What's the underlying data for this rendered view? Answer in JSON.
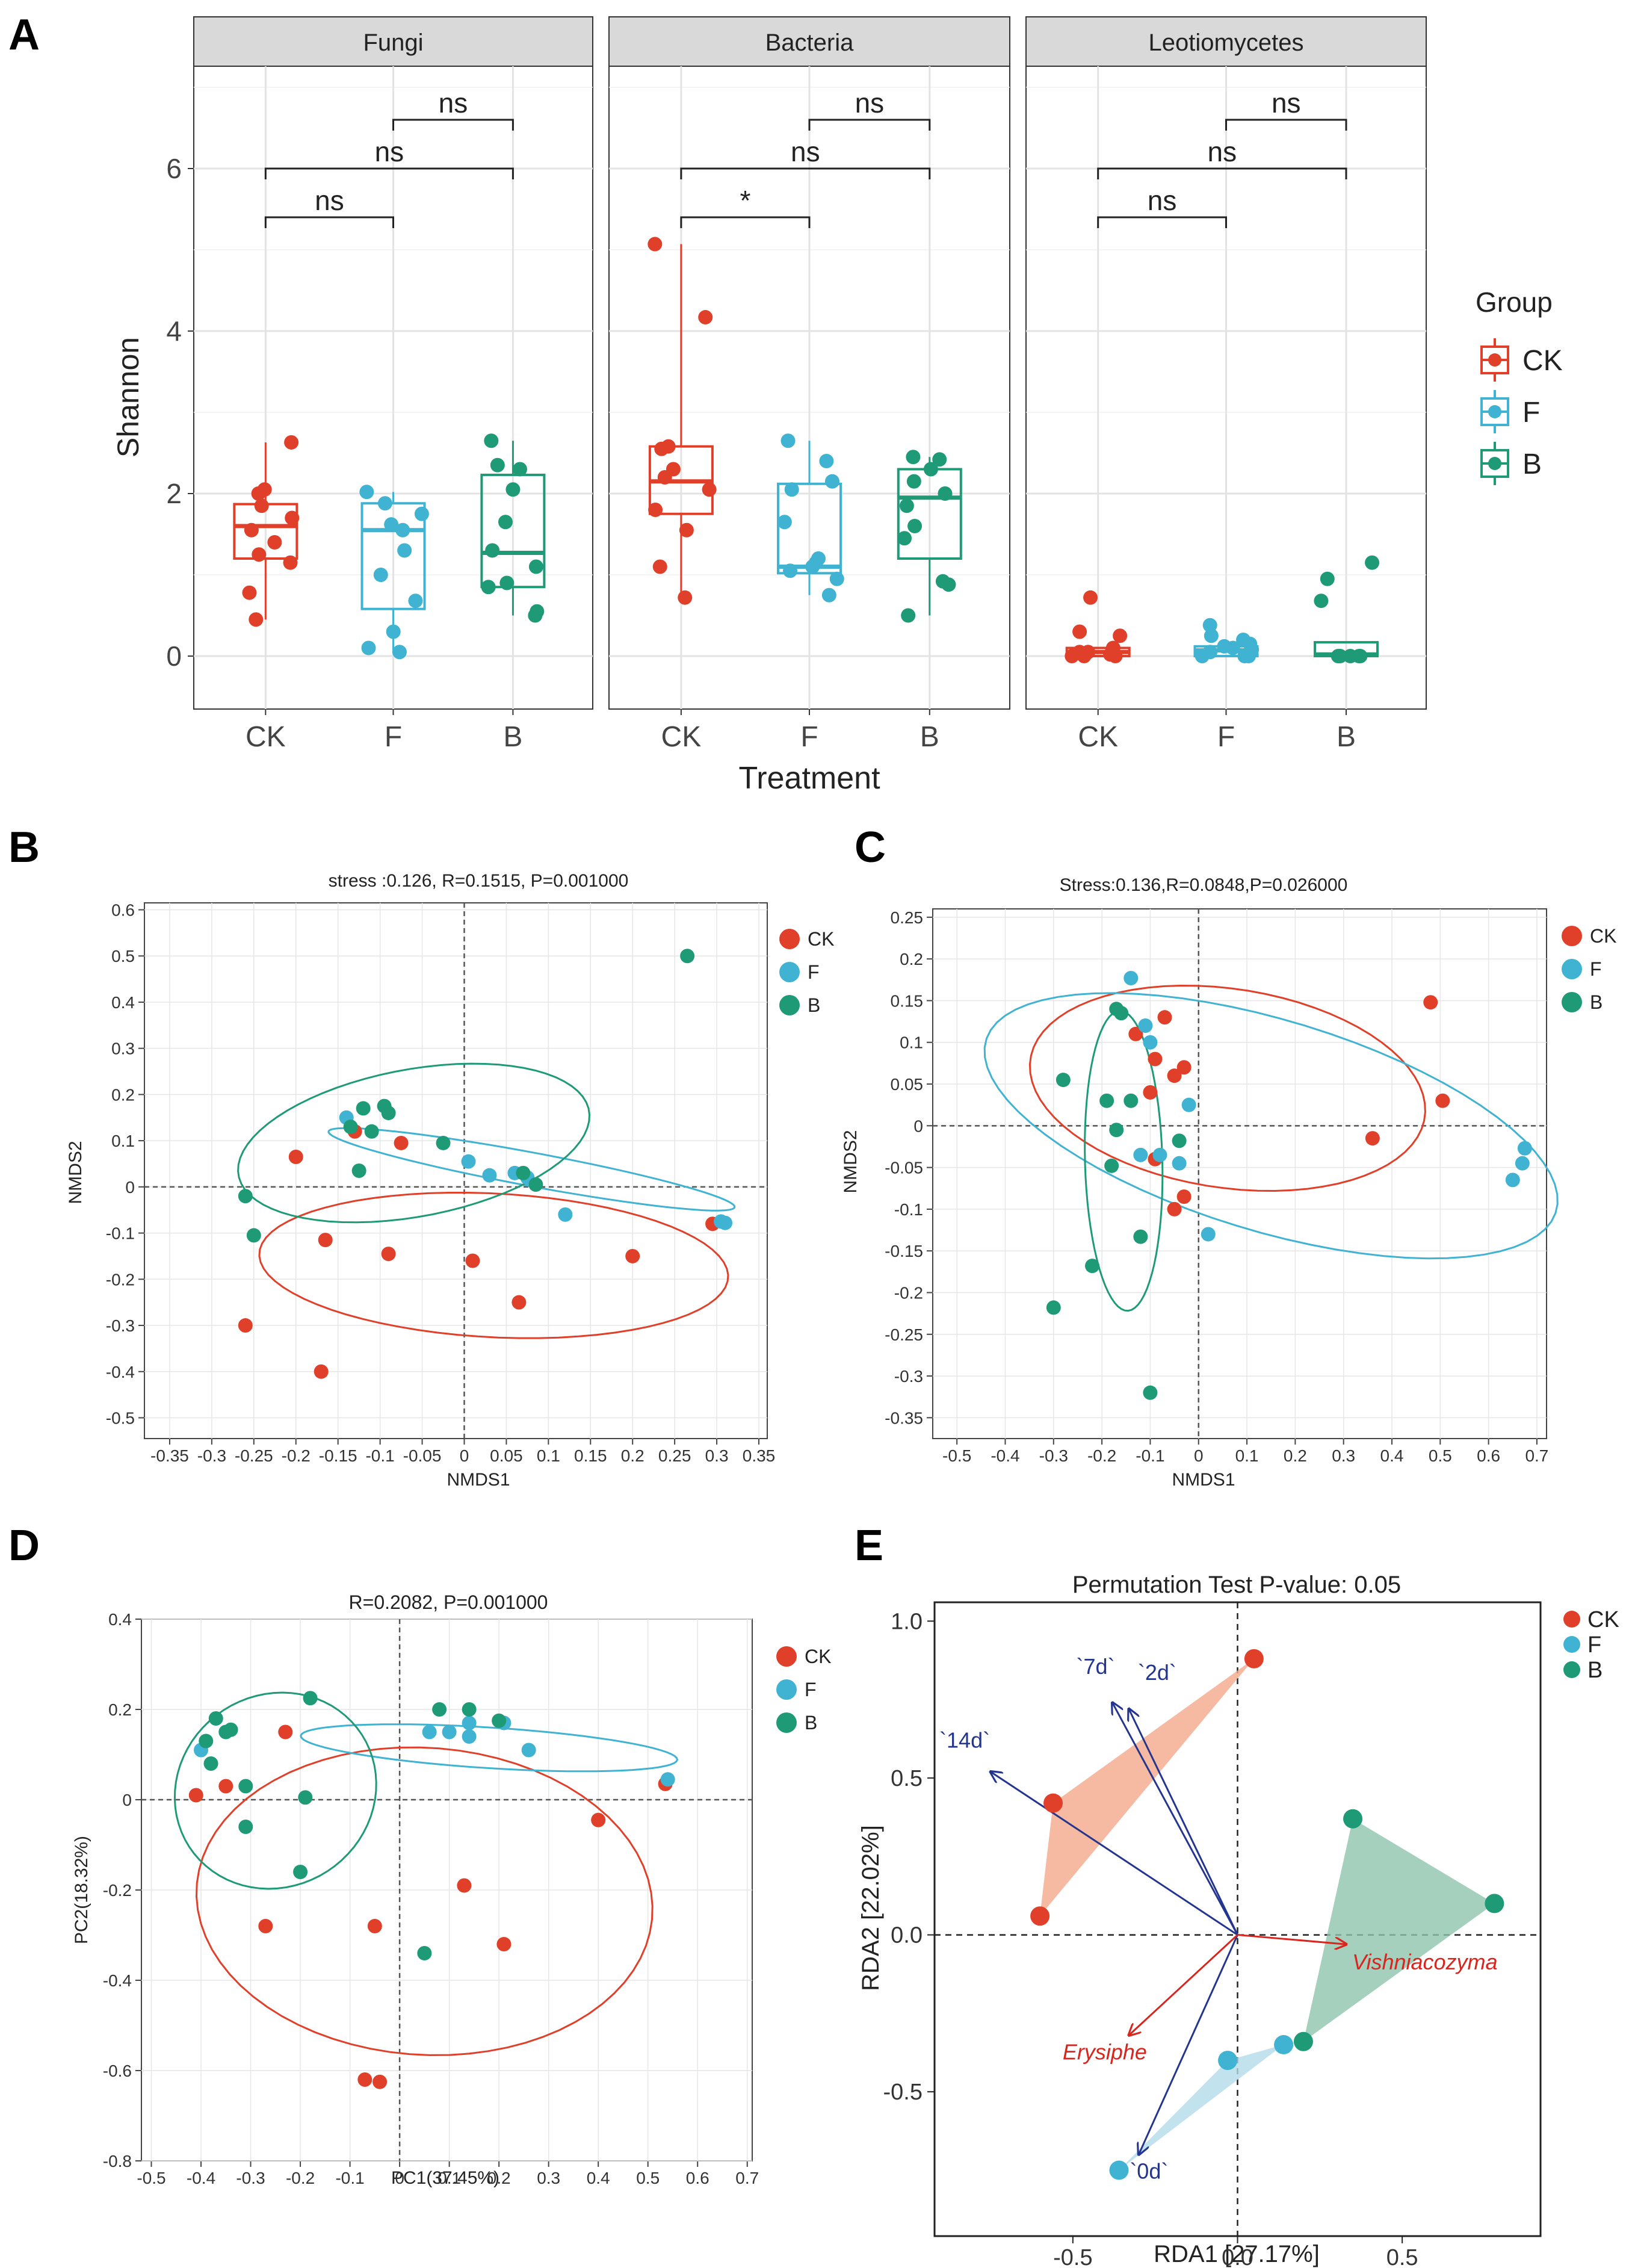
{
  "colors": {
    "CK": "#e0402a",
    "F": "#3fb3d1",
    "B": "#1f9a77",
    "arrow_env": "#23358f",
    "arrow_species": "#d8251e"
  },
  "panelA": {
    "label": "A",
    "xlabel": "Treatment",
    "ylabel": "Shannon",
    "categories": [
      "CK",
      "F",
      "B"
    ],
    "yticks": [
      "0",
      "2",
      "4",
      "6"
    ],
    "legend_title": "Group",
    "legend_items": [
      "CK",
      "F",
      "B"
    ],
    "facets": [
      {
        "title": "Fungi",
        "comparisons": [
          {
            "from": "CK",
            "to": "F",
            "label": "ns"
          },
          {
            "from": "CK",
            "to": "B",
            "label": "ns"
          },
          {
            "from": "F",
            "to": "B",
            "label": "ns"
          }
        ],
        "boxes": [
          {
            "group": "CK",
            "min": 0.45,
            "q1": 1.2,
            "median": 1.6,
            "q3": 1.87,
            "max": 2.63,
            "points": [
              0.45,
              0.78,
              1.15,
              1.25,
              1.4,
              1.55,
              1.7,
              1.85,
              2.0,
              2.05,
              2.63
            ]
          },
          {
            "group": "F",
            "min": 0.05,
            "q1": 0.58,
            "median": 1.55,
            "q3": 1.88,
            "max": 2.02,
            "points": [
              0.05,
              0.1,
              0.3,
              0.68,
              1.0,
              1.3,
              1.55,
              1.62,
              1.75,
              1.88,
              2.02
            ]
          },
          {
            "group": "B",
            "min": 0.5,
            "q1": 0.85,
            "median": 1.27,
            "q3": 2.23,
            "max": 2.65,
            "points": [
              0.5,
              0.55,
              0.85,
              0.9,
              1.1,
              1.3,
              1.65,
              2.05,
              2.3,
              2.35,
              2.65
            ]
          }
        ]
      },
      {
        "title": "Bacteria",
        "comparisons": [
          {
            "from": "CK",
            "to": "F",
            "label": "*"
          },
          {
            "from": "CK",
            "to": "B",
            "label": "ns"
          },
          {
            "from": "F",
            "to": "B",
            "label": "ns"
          }
        ],
        "boxes": [
          {
            "group": "CK",
            "min": 0.72,
            "q1": 1.75,
            "median": 2.15,
            "q3": 2.58,
            "max": 5.07,
            "points": [
              0.72,
              1.1,
              1.55,
              1.8,
              2.05,
              2.2,
              2.3,
              2.55,
              2.58,
              4.17,
              5.07
            ]
          },
          {
            "group": "F",
            "min": 0.75,
            "q1": 1.02,
            "median": 1.1,
            "q3": 2.12,
            "max": 2.65,
            "points": [
              0.75,
              0.95,
              1.05,
              1.1,
              1.15,
              1.2,
              1.65,
              2.05,
              2.15,
              2.4,
              2.65
            ]
          },
          {
            "group": "B",
            "min": 0.5,
            "q1": 1.2,
            "median": 1.95,
            "q3": 2.3,
            "max": 2.45,
            "points": [
              0.5,
              0.88,
              0.92,
              1.45,
              1.6,
              1.85,
              2.0,
              2.15,
              2.3,
              2.42,
              2.45
            ]
          }
        ]
      },
      {
        "title": "Leotiomycetes",
        "comparisons": [
          {
            "from": "CK",
            "to": "F",
            "label": "ns"
          },
          {
            "from": "CK",
            "to": "B",
            "label": "ns"
          },
          {
            "from": "F",
            "to": "B",
            "label": "ns"
          }
        ],
        "boxes": [
          {
            "group": "CK",
            "min": 0.0,
            "q1": 0.0,
            "median": 0.05,
            "q3": 0.1,
            "max": 0.1,
            "points": [
              0.0,
              0.0,
              0.0,
              0.02,
              0.05,
              0.05,
              0.1,
              0.25,
              0.3,
              0.72
            ]
          },
          {
            "group": "F",
            "min": 0.0,
            "q1": 0.0,
            "median": 0.07,
            "q3": 0.12,
            "max": 0.2,
            "points": [
              0.0,
              0.0,
              0.0,
              0.05,
              0.08,
              0.1,
              0.12,
              0.15,
              0.2,
              0.25,
              0.38
            ]
          },
          {
            "group": "B",
            "min": 0.0,
            "q1": 0.0,
            "median": 0.02,
            "q3": 0.17,
            "max": 0.17,
            "points": [
              0.0,
              0.0,
              0.0,
              0.0,
              0.0,
              0.68,
              0.95,
              1.15
            ]
          }
        ]
      }
    ]
  },
  "panelB": {
    "label": "B",
    "title": "stress :0.126, R=0.1515, P=0.001000",
    "xlabel": "NMDS1",
    "ylabel": "NMDS2",
    "xticks": [
      "-0.35",
      "-0.3",
      "-0.25",
      "-0.2",
      "-0.15",
      "-0.1",
      "-0.05",
      "0",
      "0.05",
      "0.1",
      "0.15",
      "0.2",
      "0.25",
      "0.3",
      "0.35"
    ],
    "yticks": [
      "-0.5",
      "-0.4",
      "-0.3",
      "-0.2",
      "-0.1",
      "0",
      "0.1",
      "0.2",
      "0.3",
      "0.4",
      "0.5",
      "0.6"
    ],
    "legend": [
      "CK",
      "F",
      "B"
    ],
    "points": [
      {
        "g": "CK",
        "x": -0.26,
        "y": -0.3
      },
      {
        "g": "CK",
        "x": -0.17,
        "y": -0.4
      },
      {
        "g": "CK",
        "x": -0.2,
        "y": 0.065
      },
      {
        "g": "CK",
        "x": -0.165,
        "y": -0.115
      },
      {
        "g": "CK",
        "x": -0.13,
        "y": 0.12
      },
      {
        "g": "CK",
        "x": -0.075,
        "y": 0.095
      },
      {
        "g": "CK",
        "x": -0.09,
        "y": -0.145
      },
      {
        "g": "CK",
        "x": 0.01,
        "y": -0.16
      },
      {
        "g": "CK",
        "x": 0.065,
        "y": -0.25
      },
      {
        "g": "CK",
        "x": 0.2,
        "y": -0.15
      },
      {
        "g": "CK",
        "x": 0.295,
        "y": -0.08
      },
      {
        "g": "F",
        "x": -0.14,
        "y": 0.15
      },
      {
        "g": "F",
        "x": 0.005,
        "y": 0.055
      },
      {
        "g": "F",
        "x": 0.03,
        "y": 0.025
      },
      {
        "g": "F",
        "x": 0.06,
        "y": 0.03
      },
      {
        "g": "F",
        "x": 0.075,
        "y": 0.02
      },
      {
        "g": "F",
        "x": 0.12,
        "y": -0.06
      },
      {
        "g": "F",
        "x": 0.305,
        "y": -0.075
      },
      {
        "g": "F",
        "x": 0.31,
        "y": -0.078
      },
      {
        "g": "B",
        "x": -0.26,
        "y": -0.02
      },
      {
        "g": "B",
        "x": -0.25,
        "y": -0.105
      },
      {
        "g": "B",
        "x": -0.135,
        "y": 0.13
      },
      {
        "g": "B",
        "x": -0.125,
        "y": 0.035
      },
      {
        "g": "B",
        "x": -0.12,
        "y": 0.17
      },
      {
        "g": "B",
        "x": -0.11,
        "y": 0.12
      },
      {
        "g": "B",
        "x": -0.095,
        "y": 0.175
      },
      {
        "g": "B",
        "x": -0.09,
        "y": 0.16
      },
      {
        "g": "B",
        "x": -0.025,
        "y": 0.095
      },
      {
        "g": "B",
        "x": 0.07,
        "y": 0.03
      },
      {
        "g": "B",
        "x": 0.085,
        "y": 0.005
      },
      {
        "g": "B",
        "x": 0.265,
        "y": 0.5
      }
    ],
    "ellipses": [
      {
        "g": "CK",
        "cx": 0.035,
        "cy": -0.17,
        "rx": 0.28,
        "ry": 0.155,
        "angle": -7
      },
      {
        "g": "F",
        "cx": 0.08,
        "cy": 0.038,
        "rx": 0.255,
        "ry": 0.035,
        "angle": -19
      },
      {
        "g": "B",
        "cx": -0.06,
        "cy": 0.095,
        "rx": 0.225,
        "ry": 0.15,
        "angle": 30
      }
    ]
  },
  "panelC": {
    "label": "C",
    "title": "Stress:0.136,R=0.0848,P=0.026000",
    "xlabel": "NMDS1",
    "ylabel": "NMDS2",
    "xticks": [
      "-0.5",
      "-0.4",
      "-0.3",
      "-0.2",
      "-0.1",
      "0",
      "0.1",
      "0.2",
      "0.3",
      "0.4",
      "0.5",
      "0.6",
      "0.7"
    ],
    "yticks": [
      "-0.35",
      "-0.3",
      "-0.25",
      "-0.2",
      "-0.15",
      "-0.1",
      "-0.05",
      "0",
      "0.05",
      "0.1",
      "0.15",
      "0.2",
      "0.25"
    ],
    "legend": [
      "CK",
      "F",
      "B"
    ],
    "points": [
      {
        "g": "CK",
        "x": -0.13,
        "y": 0.11
      },
      {
        "g": "CK",
        "x": -0.09,
        "y": 0.08
      },
      {
        "g": "CK",
        "x": -0.07,
        "y": 0.13
      },
      {
        "g": "CK",
        "x": -0.1,
        "y": 0.04
      },
      {
        "g": "CK",
        "x": -0.05,
        "y": 0.06
      },
      {
        "g": "CK",
        "x": -0.03,
        "y": 0.07
      },
      {
        "g": "CK",
        "x": -0.09,
        "y": -0.04
      },
      {
        "g": "CK",
        "x": -0.05,
        "y": -0.1
      },
      {
        "g": "CK",
        "x": -0.03,
        "y": -0.085
      },
      {
        "g": "CK",
        "x": 0.36,
        "y": -0.015
      },
      {
        "g": "CK",
        "x": 0.48,
        "y": 0.148
      },
      {
        "g": "CK",
        "x": 0.505,
        "y": 0.03
      },
      {
        "g": "F",
        "x": -0.14,
        "y": 0.177
      },
      {
        "g": "F",
        "x": -0.11,
        "y": 0.12
      },
      {
        "g": "F",
        "x": -0.1,
        "y": 0.1
      },
      {
        "g": "F",
        "x": -0.12,
        "y": -0.035
      },
      {
        "g": "F",
        "x": -0.08,
        "y": -0.035
      },
      {
        "g": "F",
        "x": -0.04,
        "y": -0.045
      },
      {
        "g": "F",
        "x": -0.02,
        "y": 0.025
      },
      {
        "g": "F",
        "x": 0.02,
        "y": -0.13
      },
      {
        "g": "F",
        "x": 0.65,
        "y": -0.065
      },
      {
        "g": "F",
        "x": 0.67,
        "y": -0.045
      },
      {
        "g": "F",
        "x": 0.675,
        "y": -0.027
      },
      {
        "g": "B",
        "x": -0.28,
        "y": 0.055
      },
      {
        "g": "B",
        "x": -0.3,
        "y": -0.218
      },
      {
        "g": "B",
        "x": -0.19,
        "y": 0.03
      },
      {
        "g": "B",
        "x": -0.17,
        "y": 0.14
      },
      {
        "g": "B",
        "x": -0.16,
        "y": 0.135
      },
      {
        "g": "B",
        "x": -0.14,
        "y": 0.03
      },
      {
        "g": "B",
        "x": -0.17,
        "y": -0.005
      },
      {
        "g": "B",
        "x": -0.18,
        "y": -0.048
      },
      {
        "g": "B",
        "x": -0.22,
        "y": -0.168
      },
      {
        "g": "B",
        "x": -0.12,
        "y": -0.133
      },
      {
        "g": "B",
        "x": -0.1,
        "y": -0.32
      },
      {
        "g": "B",
        "x": -0.04,
        "y": -0.018
      }
    ],
    "ellipses": [
      {
        "g": "CK",
        "cx": 0.06,
        "cy": 0.045,
        "rx": 0.41,
        "ry": 0.12,
        "angle": -4
      },
      {
        "g": "F",
        "cx": 0.15,
        "cy": 0.0,
        "rx": 0.6,
        "ry": 0.13,
        "angle": -9
      },
      {
        "g": "B",
        "cx": -0.155,
        "cy": -0.042,
        "rx": 0.08,
        "ry": 0.18,
        "angle": 3
      }
    ]
  },
  "panelD": {
    "label": "D",
    "title": "R=0.2082, P=0.001000",
    "xlabel": "PC1(37.45%)",
    "ylabel": "PC2(18.32%)",
    "xticks": [
      "-0.5",
      "-0.4",
      "-0.3",
      "-0.2",
      "-0.1",
      "0",
      "0.1",
      "0.2",
      "0.3",
      "0.4",
      "0.5",
      "0.6",
      "0.7"
    ],
    "yticks": [
      "-0.8",
      "-0.6",
      "-0.4",
      "-0.2",
      "0",
      "0.2",
      "0.4"
    ],
    "legend": [
      "CK",
      "F",
      "B"
    ],
    "points": [
      {
        "g": "CK",
        "x": -0.41,
        "y": 0.01
      },
      {
        "g": "CK",
        "x": -0.35,
        "y": 0.03
      },
      {
        "g": "CK",
        "x": -0.23,
        "y": 0.15
      },
      {
        "g": "CK",
        "x": -0.27,
        "y": -0.28
      },
      {
        "g": "CK",
        "x": -0.05,
        "y": -0.28
      },
      {
        "g": "CK",
        "x": -0.07,
        "y": -0.62
      },
      {
        "g": "CK",
        "x": -0.04,
        "y": -0.625
      },
      {
        "g": "CK",
        "x": 0.13,
        "y": -0.19
      },
      {
        "g": "CK",
        "x": 0.21,
        "y": -0.32
      },
      {
        "g": "CK",
        "x": 0.4,
        "y": -0.045
      },
      {
        "g": "CK",
        "x": 0.535,
        "y": 0.035
      },
      {
        "g": "F",
        "x": -0.4,
        "y": 0.11
      },
      {
        "g": "F",
        "x": 0.06,
        "y": 0.15
      },
      {
        "g": "F",
        "x": 0.1,
        "y": 0.15
      },
      {
        "g": "F",
        "x": 0.14,
        "y": 0.17
      },
      {
        "g": "F",
        "x": 0.14,
        "y": 0.14
      },
      {
        "g": "F",
        "x": 0.21,
        "y": 0.17
      },
      {
        "g": "F",
        "x": 0.26,
        "y": 0.11
      },
      {
        "g": "F",
        "x": 0.54,
        "y": 0.045
      },
      {
        "g": "B",
        "x": -0.37,
        "y": 0.18
      },
      {
        "g": "B",
        "x": -0.39,
        "y": 0.13
      },
      {
        "g": "B",
        "x": -0.38,
        "y": 0.08
      },
      {
        "g": "B",
        "x": -0.35,
        "y": 0.15
      },
      {
        "g": "B",
        "x": -0.34,
        "y": 0.155
      },
      {
        "g": "B",
        "x": -0.31,
        "y": 0.03
      },
      {
        "g": "B",
        "x": -0.31,
        "y": -0.06
      },
      {
        "g": "B",
        "x": -0.18,
        "y": 0.225
      },
      {
        "g": "B",
        "x": -0.19,
        "y": 0.005
      },
      {
        "g": "B",
        "x": -0.2,
        "y": -0.16
      },
      {
        "g": "B",
        "x": 0.08,
        "y": 0.2
      },
      {
        "g": "B",
        "x": 0.14,
        "y": 0.2
      },
      {
        "g": "B",
        "x": 0.2,
        "y": 0.175
      },
      {
        "g": "B",
        "x": 0.05,
        "y": -0.34
      }
    ],
    "ellipses": [
      {
        "g": "CK",
        "cx": 0.05,
        "cy": -0.225,
        "rx": 0.46,
        "ry": 0.34,
        "angle": -5
      },
      {
        "g": "F",
        "cx": 0.18,
        "cy": 0.115,
        "rx": 0.38,
        "ry": 0.045,
        "angle": -4
      },
      {
        "g": "B",
        "cx": -0.25,
        "cy": 0.02,
        "rx": 0.2,
        "ry": 0.22,
        "angle": -22
      }
    ]
  },
  "panelE": {
    "label": "E",
    "title": "Permutation Test P-value: 0.05",
    "xlabel": "RDA1 [27.17%]",
    "ylabel": "RDA2 [22.02%]",
    "xticks": [
      "-0.5",
      "0.0",
      "0.5"
    ],
    "yticks": [
      "-0.5",
      "0.0",
      "0.5",
      "1.0"
    ],
    "legend": [
      "CK",
      "F",
      "B"
    ],
    "points": [
      {
        "g": "CK",
        "x": 0.05,
        "y": 0.88
      },
      {
        "g": "CK",
        "x": -0.56,
        "y": 0.42
      },
      {
        "g": "CK",
        "x": -0.6,
        "y": 0.06
      },
      {
        "g": "F",
        "x": -0.03,
        "y": -0.4
      },
      {
        "g": "F",
        "x": 0.14,
        "y": -0.35
      },
      {
        "g": "F",
        "x": -0.36,
        "y": -0.75
      },
      {
        "g": "B",
        "x": 0.35,
        "y": 0.37
      },
      {
        "g": "B",
        "x": 0.78,
        "y": 0.1
      },
      {
        "g": "B",
        "x": 0.2,
        "y": -0.34
      }
    ],
    "arrows": [
      {
        "label": "`7d`",
        "x": -0.38,
        "y": 0.74,
        "kind": "env"
      },
      {
        "label": "`2d`",
        "x": -0.33,
        "y": 0.72,
        "kind": "env"
      },
      {
        "label": "`14d`",
        "x": -0.75,
        "y": 0.52,
        "kind": "env"
      },
      {
        "label": "`0d`",
        "x": -0.3,
        "y": -0.7,
        "kind": "env"
      },
      {
        "label": "Vishniacozyma",
        "x": 0.33,
        "y": -0.03,
        "kind": "species"
      },
      {
        "label": "Erysiphe",
        "x": -0.33,
        "y": -0.32,
        "kind": "species"
      }
    ]
  }
}
